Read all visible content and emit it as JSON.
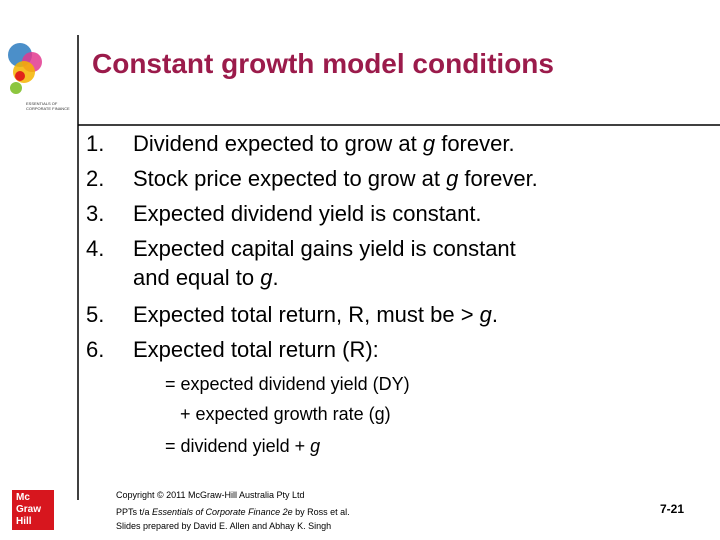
{
  "slide": {
    "title": "Constant growth model conditions",
    "items": [
      {
        "number": "1.",
        "parts": [
          "Dividend expected to grow at ",
          "g",
          " forever."
        ]
      },
      {
        "number": "2.",
        "parts": [
          "Stock price expected to grow at ",
          "g",
          " forever."
        ]
      },
      {
        "number": "3.",
        "parts": [
          "Expected dividend yield is constant."
        ]
      },
      {
        "number": "4.",
        "parts": [
          "Expected capital gains yield is constant"
        ],
        "continuation": [
          "and equal to ",
          "g",
          "."
        ]
      },
      {
        "number": "5.",
        "parts": [
          "Expected total return, R, must be > ",
          "g",
          "."
        ]
      },
      {
        "number": "6.",
        "parts": [
          "Expected total return (R):"
        ]
      }
    ],
    "formula": [
      "= expected dividend yield (DY)",
      "+ expected growth rate (g)",
      [
        "= dividend yield + ",
        "g"
      ]
    ],
    "footer": {
      "copyright": "Copyright © 2011 McGraw-Hill Australia Pty Ltd",
      "line2": [
        "PPTs t/a ",
        "Essentials of Corporate Finance 2e",
        " by Ross et al."
      ],
      "line3": "Slides prepared by David E. Allen and Abhay K. Singh",
      "page": "7-21"
    },
    "logos": {
      "book": [
        "ESSENTIALS OF",
        "CORPORATE FINANCE"
      ],
      "publisher": [
        "Mc",
        "Graw",
        "Hill"
      ]
    }
  }
}
